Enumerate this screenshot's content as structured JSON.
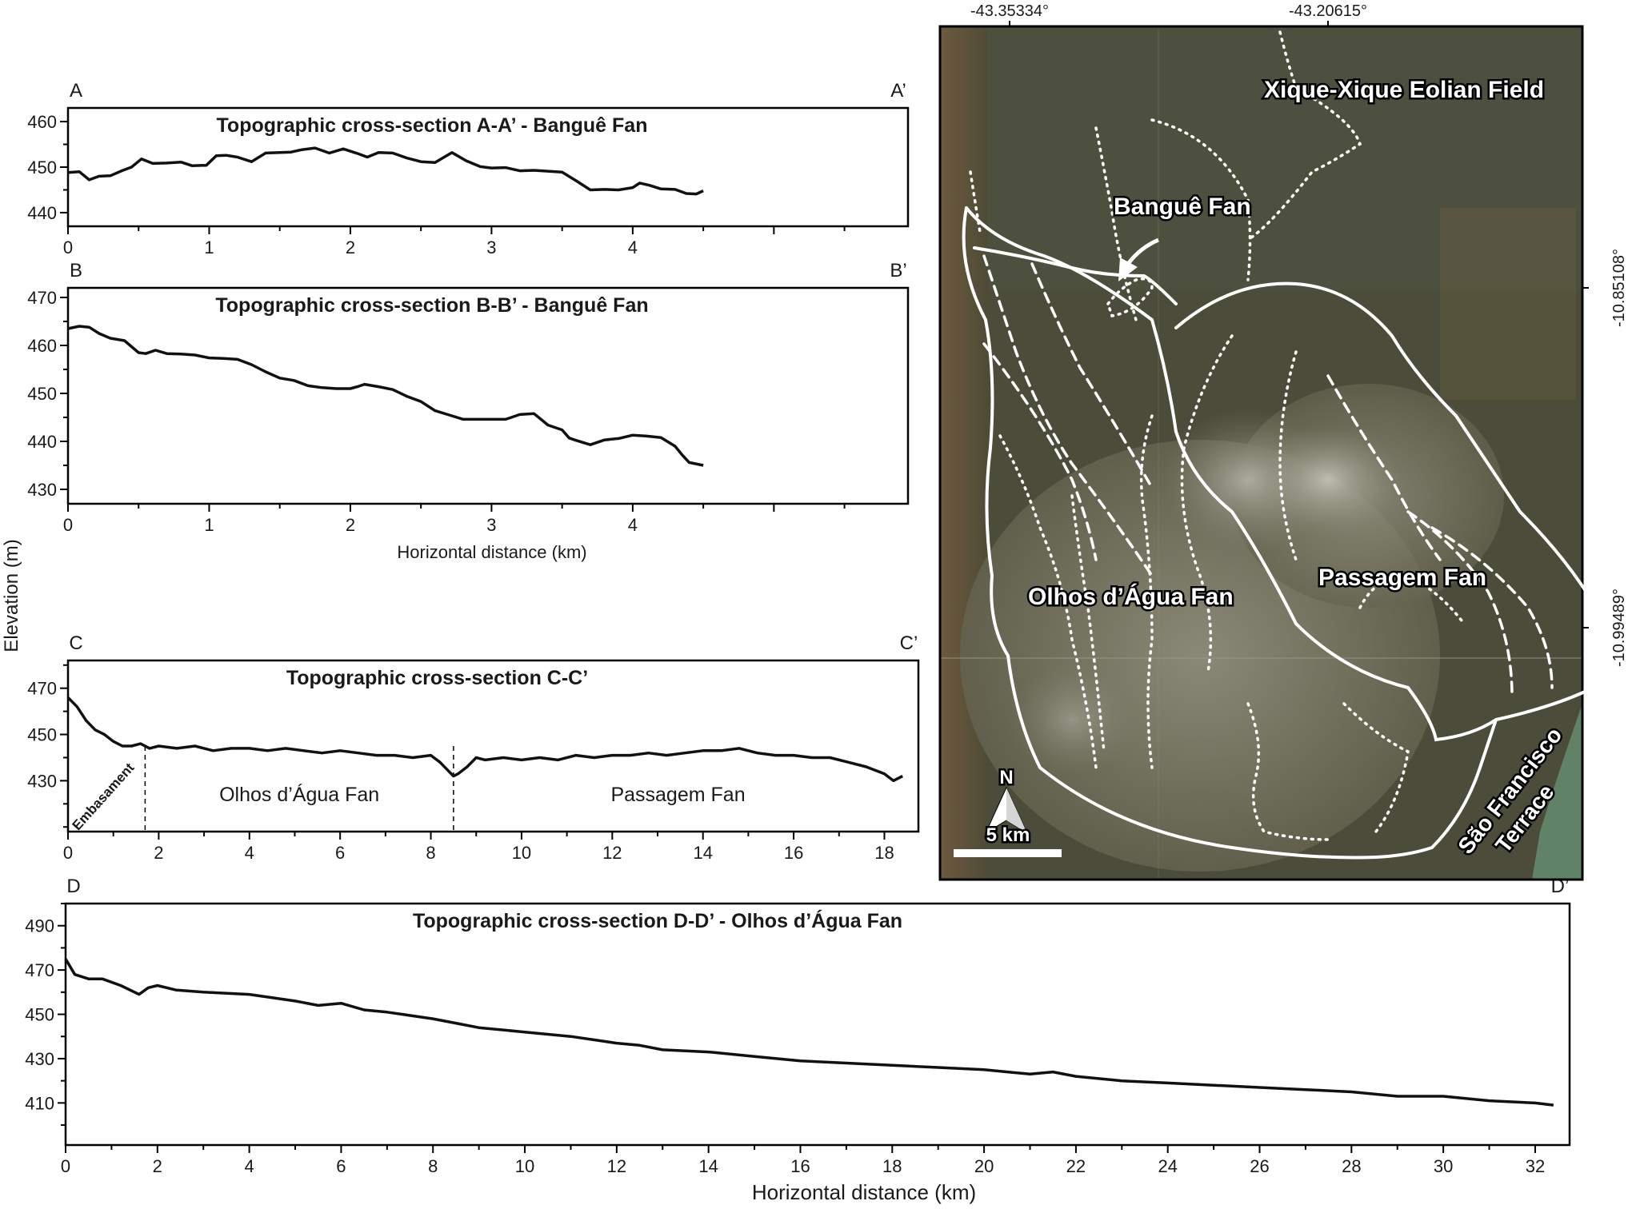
{
  "y_axis_label": "Elevation (m)",
  "chart_data": [
    {
      "type": "line",
      "id": "aa",
      "title": "Topographic cross-section A-A’ - Banguê Fan",
      "start_label": "A",
      "end_label": "A’",
      "xlabel": "",
      "x_ticks": [
        0,
        1,
        2,
        3,
        4
      ],
      "y_ticks": [
        440,
        450,
        460
      ],
      "xlim": [
        0,
        4.5
      ],
      "ylim": [
        437,
        463
      ],
      "series": [
        {
          "x": [
            0,
            0.08,
            0.15,
            0.22,
            0.3,
            0.38,
            0.45,
            0.52,
            0.6,
            0.7,
            0.8,
            0.88,
            0.98,
            1.05,
            1.12,
            1.2,
            1.3,
            1.4,
            1.5,
            1.58,
            1.65,
            1.75,
            1.85,
            1.95,
            2.05,
            2.12,
            2.2,
            2.3,
            2.4,
            2.5,
            2.6,
            2.72,
            2.82,
            2.92,
            3.0,
            3.1,
            3.2,
            3.3,
            3.4,
            3.5,
            3.6,
            3.7,
            3.8,
            3.9,
            4.0,
            4.05,
            4.12,
            4.2,
            4.3,
            4.38,
            4.45,
            4.5
          ],
          "y": [
            448.8,
            449,
            447.2,
            448,
            448.1,
            449.2,
            450,
            451.8,
            450.8,
            450.9,
            451.1,
            450.3,
            450.4,
            452.5,
            452.6,
            452.2,
            451.2,
            453.1,
            453.2,
            453.3,
            453.8,
            454.2,
            453.1,
            454,
            453,
            452.2,
            453.2,
            453.1,
            452,
            451.2,
            451,
            453.2,
            451.4,
            450.1,
            449.8,
            449.9,
            449.2,
            449.3,
            449.1,
            448.9,
            447,
            445,
            445.1,
            445,
            445.5,
            446.5,
            446,
            445.2,
            445.1,
            444.2,
            444.1,
            444.8
          ]
        }
      ]
    },
    {
      "type": "line",
      "id": "bb",
      "title": "Topographic cross-section B-B’ - Banguê Fan",
      "start_label": "B",
      "end_label": "B’",
      "xlabel": "Horizontal distance (km)",
      "x_ticks": [
        0,
        1,
        2,
        3,
        4
      ],
      "y_ticks": [
        430,
        440,
        450,
        460,
        470
      ],
      "xlim": [
        0,
        4.5
      ],
      "ylim": [
        427,
        472
      ],
      "series": [
        {
          "x": [
            0,
            0.08,
            0.15,
            0.22,
            0.3,
            0.4,
            0.5,
            0.55,
            0.62,
            0.7,
            0.8,
            0.9,
            1.0,
            1.1,
            1.2,
            1.3,
            1.4,
            1.5,
            1.6,
            1.7,
            1.8,
            1.9,
            2.0,
            2.05,
            2.1,
            2.2,
            2.3,
            2.4,
            2.5,
            2.6,
            2.7,
            2.8,
            2.9,
            3.0,
            3.1,
            3.2,
            3.3,
            3.4,
            3.5,
            3.55,
            3.6,
            3.7,
            3.8,
            3.9,
            4.0,
            4.1,
            4.2,
            4.3,
            4.35,
            4.4,
            4.5
          ],
          "y": [
            463.5,
            464,
            463.8,
            462.5,
            461.5,
            461,
            458.5,
            458.3,
            459,
            458.3,
            458.2,
            458,
            457.4,
            457.3,
            457.1,
            456,
            454.5,
            453.2,
            452.7,
            451.6,
            451.2,
            451,
            451,
            451.4,
            451.9,
            451.4,
            450.8,
            449.4,
            448.3,
            446.4,
            445.5,
            444.6,
            444.6,
            444.6,
            444.6,
            445.6,
            445.8,
            443.4,
            442.4,
            440.7,
            440.2,
            439.3,
            440.3,
            440.6,
            441.3,
            441.1,
            440.8,
            439,
            437.2,
            435.6,
            435
          ]
        }
      ]
    },
    {
      "type": "line",
      "id": "cc",
      "title": "Topographic cross-section C-C’",
      "start_label": "C",
      "end_label": "C’",
      "xlabel": "",
      "x_ticks": [
        0,
        2,
        4,
        6,
        8,
        10,
        12,
        14,
        16,
        18
      ],
      "y_ticks": [
        430,
        450,
        470
      ],
      "xlim": [
        0,
        18.4
      ],
      "ylim": [
        408,
        482
      ],
      "series": [
        {
          "x": [
            0,
            0.2,
            0.4,
            0.6,
            0.8,
            1.0,
            1.2,
            1.4,
            1.6,
            1.8,
            2.0,
            2.4,
            2.8,
            3.2,
            3.6,
            4.0,
            4.4,
            4.8,
            5.2,
            5.6,
            6.0,
            6.4,
            6.8,
            7.2,
            7.6,
            8.0,
            8.2,
            8.4,
            8.5,
            8.6,
            8.8,
            9.0,
            9.2,
            9.6,
            10.0,
            10.4,
            10.8,
            11.2,
            11.6,
            12.0,
            12.4,
            12.8,
            13.2,
            13.6,
            14.0,
            14.4,
            14.8,
            15.2,
            15.6,
            16.0,
            16.4,
            16.8,
            17.2,
            17.6,
            18.0,
            18.2,
            18.4
          ],
          "y": [
            466,
            462,
            456,
            452,
            450,
            447,
            445,
            445,
            446,
            444,
            445,
            444,
            445,
            443,
            444,
            444,
            443,
            444,
            443,
            442,
            443,
            442,
            441,
            441,
            440,
            441,
            438,
            434,
            432,
            433,
            436,
            440,
            439,
            440,
            439,
            440,
            439,
            441,
            440,
            441,
            441,
            442,
            441,
            442,
            443,
            443,
            444,
            442,
            441,
            441,
            440,
            440,
            438,
            436,
            433,
            430,
            432
          ]
        }
      ],
      "zones": [
        {
          "label": "Embasament",
          "from": 0,
          "to": 1.7
        },
        {
          "label": "Olhos d’Água Fan",
          "from": 1.7,
          "to": 8.5
        },
        {
          "label": "Passagem Fan",
          "from": 8.5,
          "to": 18.4
        }
      ],
      "dividers": [
        1.7,
        8.5
      ]
    },
    {
      "type": "line",
      "id": "dd",
      "title": "Topographic cross-section D-D’ - Olhos d’Água Fan",
      "start_label": "D",
      "end_label": "D’",
      "xlabel": "Horizontal distance (km)",
      "x_ticks": [
        0,
        2,
        4,
        6,
        8,
        10,
        12,
        14,
        16,
        18,
        20,
        22,
        24,
        26,
        28,
        30,
        32
      ],
      "y_ticks": [
        410,
        430,
        450,
        470,
        490
      ],
      "xlim": [
        0,
        32.4
      ],
      "ylim": [
        391,
        500
      ],
      "series": [
        {
          "x": [
            0,
            0.2,
            0.5,
            0.8,
            1.2,
            1.6,
            1.8,
            2.0,
            2.4,
            3.0,
            4.0,
            5.0,
            5.5,
            6.0,
            6.5,
            7.0,
            8.0,
            8.5,
            9.0,
            10.0,
            11.0,
            12.0,
            12.5,
            13.0,
            14.0,
            15.0,
            16.0,
            17.0,
            18.0,
            19.0,
            20.0,
            21.0,
            21.5,
            22.0,
            23.0,
            24.0,
            25.0,
            26.0,
            27.0,
            28.0,
            28.5,
            29.0,
            30.0,
            31.0,
            32.0,
            32.4
          ],
          "y": [
            475,
            468,
            466,
            466,
            463,
            459,
            462,
            463,
            461,
            460,
            459,
            456,
            454,
            455,
            452,
            451,
            448,
            446,
            444,
            442,
            440,
            437,
            436,
            434,
            433,
            431,
            429,
            428,
            427,
            426,
            425,
            423,
            424,
            422,
            420,
            419,
            418,
            417,
            416,
            415,
            414,
            413,
            413,
            411,
            410,
            409
          ]
        }
      ]
    }
  ],
  "map": {
    "lon_labels": [
      "-43.35334°",
      "-43.20615°"
    ],
    "lat_labels": [
      "-10.85108°",
      "-10.99489°"
    ],
    "labels": {
      "xique": "Xique-Xique Eolian Field",
      "bangue": "Banguê Fan",
      "olhos": "Olhos d’Água Fan",
      "passagem": "Passagem Fan",
      "sao_francisco": "São Francisco",
      "terrace": "Terrace"
    },
    "north_label": "N",
    "scale_label": "5 km",
    "colors": {
      "terrain_dark": "#4a4c3a",
      "terrain_mid": "#5e5e48",
      "fan_light": "#8c8b78",
      "outline": "#ffffff",
      "river": "#6a9a7a"
    }
  }
}
